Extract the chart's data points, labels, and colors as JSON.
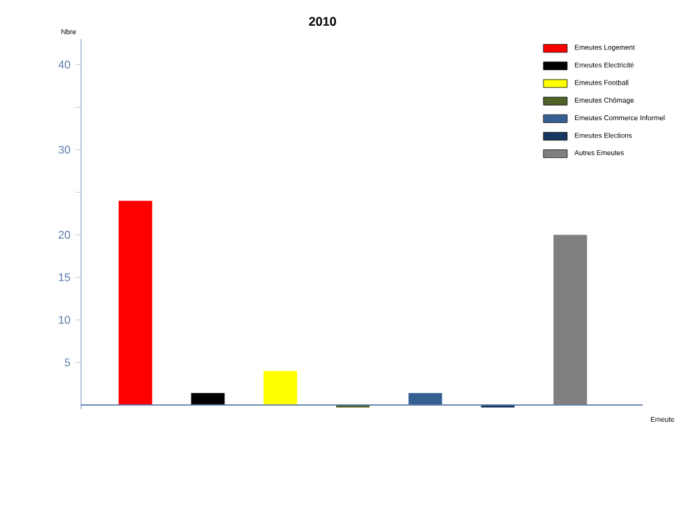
{
  "chart_data": {
    "type": "bar",
    "title": "2010",
    "xlabel": "Emeute",
    "ylabel": "Nbre",
    "categories": [
      null,
      null,
      null,
      null,
      null,
      null,
      null
    ],
    "series": [
      {
        "name": "Emeutes Logement",
        "color": "#ff0000",
        "values": [
          24,
          null,
          null,
          null,
          null,
          null,
          null
        ]
      },
      {
        "name": "Emeutes Electricité",
        "color": "#000000",
        "values": [
          null,
          1.4,
          null,
          null,
          null,
          null,
          null
        ]
      },
      {
        "name": "Emeutes Football",
        "color": "#ffff00",
        "values": [
          null,
          null,
          4,
          null,
          null,
          null,
          null
        ]
      },
      {
        "name": "Emeutes Chômage",
        "color": "#4f6228",
        "values": [
          null,
          null,
          null,
          -0.3,
          null,
          null,
          null
        ]
      },
      {
        "name": "Emeutes Commerce Informel",
        "color": "#376092",
        "values": [
          null,
          null,
          null,
          null,
          1.4,
          null,
          null
        ]
      },
      {
        "name": "Emeutes Elections",
        "color": "#17375e",
        "values": [
          null,
          null,
          null,
          null,
          null,
          -0.3,
          null
        ]
      },
      {
        "name": "Autres Emeutes",
        "color": "#808080",
        "values": [
          null,
          null,
          null,
          null,
          null,
          null,
          20
        ]
      }
    ],
    "ylim": [
      -0.5,
      43
    ],
    "yticks": [
      5,
      10,
      15,
      20,
      {
        "value": 25,
        "label": null
      },
      30,
      {
        "value": 35,
        "label": null
      },
      40
    ],
    "ref_lines": [
      {
        "axis": "y",
        "value": 0,
        "color": "#5a7aaa"
      }
    ],
    "legend": "top right",
    "grid": false
  }
}
